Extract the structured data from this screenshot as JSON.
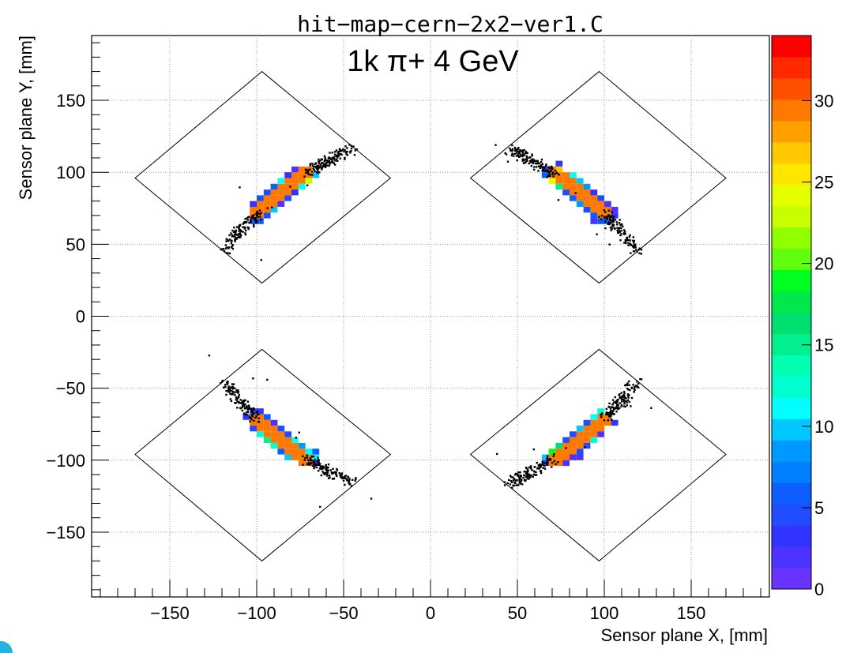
{
  "chart_data": {
    "type": "heatmap",
    "title": "hit−map−cern−2x2−ver1.C",
    "subtitle": "1k π+ 4 GeV",
    "xlabel": "Sensor plane X, [mm]",
    "ylabel": "Sensor plane Y, [mm]",
    "xlim": [
      -195,
      195
    ],
    "ylim": [
      -195,
      195
    ],
    "grid": true,
    "x_ticks": [
      -150,
      -100,
      -50,
      0,
      50,
      100,
      150
    ],
    "x_tick_labels": [
      "−150",
      "−100",
      "−50",
      "0",
      "50",
      "100",
      "150"
    ],
    "y_ticks": [
      -150,
      -100,
      -50,
      0,
      50,
      100,
      150
    ],
    "y_tick_labels": [
      "−150",
      "−100",
      "−50",
      "0",
      "50",
      "100",
      "150"
    ],
    "colorbar": {
      "range": [
        0,
        34
      ],
      "ticks": [
        0,
        5,
        10,
        15,
        20,
        25,
        30
      ],
      "tick_labels": [
        "0",
        "5",
        "10",
        "15",
        "20",
        "25",
        "30"
      ],
      "colors": [
        "#6b33ff",
        "#4d33ff",
        "#3333ff",
        "#1f4dff",
        "#0d5eff",
        "#0080ff",
        "#0099ff",
        "#00c8ff",
        "#00ffff",
        "#00ffd0",
        "#00ffb0",
        "#00f090",
        "#00e070",
        "#00e84a",
        "#00ff20",
        "#60ff10",
        "#90ff00",
        "#c8ff00",
        "#e6ff00",
        "#ffe600",
        "#ffc800",
        "#ffa000",
        "#ff7800",
        "#ff5000",
        "#ff2800",
        "#ff0000"
      ]
    },
    "sensors": [
      {
        "name": "top-left",
        "outline": [
          [
            -170,
            96
          ],
          [
            -97,
            170
          ],
          [
            -23,
            96
          ],
          [
            -97,
            23
          ]
        ],
        "arc_from": [
          -118,
          46
        ],
        "arc_to": [
          -45,
          116
        ],
        "bow": 1
      },
      {
        "name": "top-right",
        "outline": [
          [
            23,
            96
          ],
          [
            97,
            170
          ],
          [
            170,
            96
          ],
          [
            97,
            23
          ]
        ],
        "arc_from": [
          45,
          116
        ],
        "arc_to": [
          118,
          46
        ],
        "bow": 1
      },
      {
        "name": "bottom-left",
        "outline": [
          [
            -170,
            -96
          ],
          [
            -97,
            -23
          ],
          [
            -23,
            -96
          ],
          [
            -97,
            -170
          ]
        ],
        "arc_from": [
          -118,
          -46
        ],
        "arc_to": [
          -45,
          -116
        ],
        "bow": -1
      },
      {
        "name": "bottom-right",
        "outline": [
          [
            23,
            -96
          ],
          [
            97,
            -23
          ],
          [
            170,
            -96
          ],
          [
            97,
            -170
          ]
        ],
        "arc_from": [
          45,
          -116
        ],
        "arc_to": [
          118,
          -46
        ],
        "bow": -1
      }
    ]
  }
}
